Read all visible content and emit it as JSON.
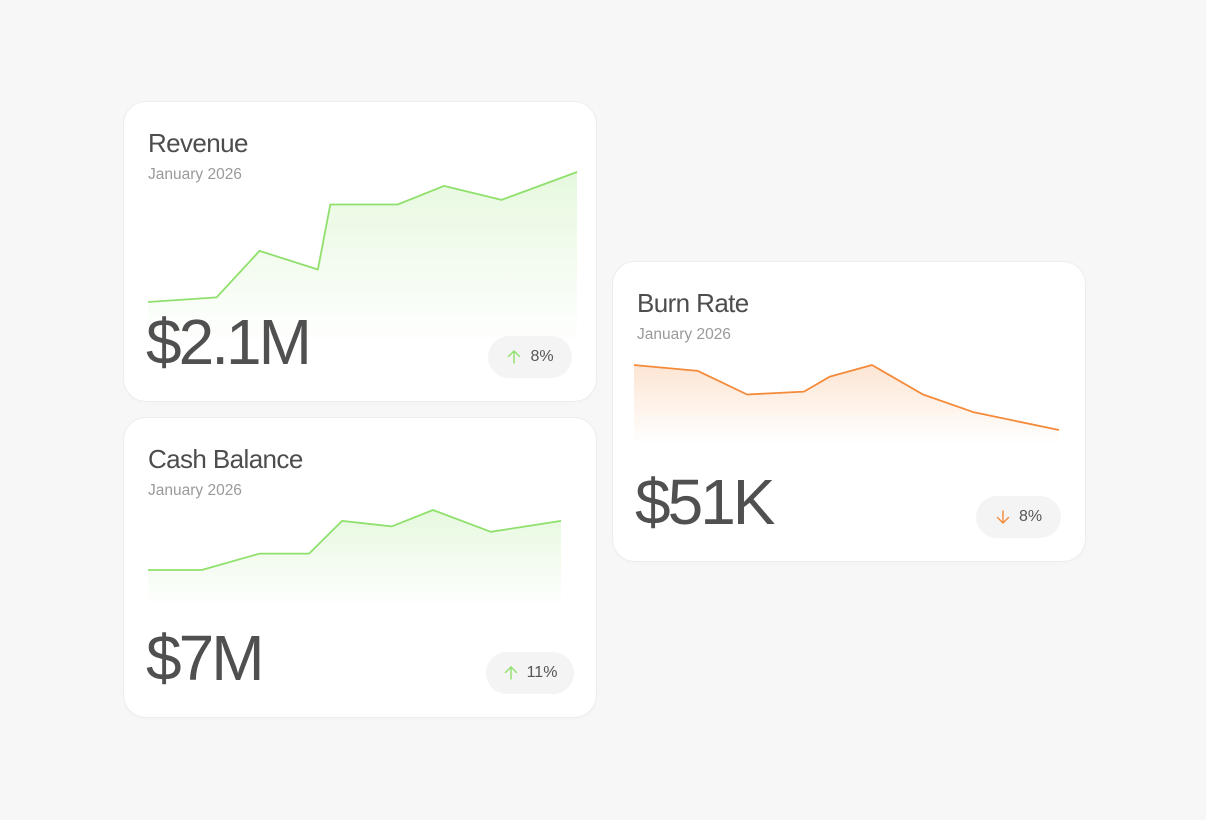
{
  "colors": {
    "background": "#f7f7f7",
    "card": "#ffffff",
    "positive": "#8fe06c",
    "negative": "#f48a3a",
    "badge_bg": "#f4f4f4",
    "text_primary": "#505050",
    "text_muted": "#9a9a9a"
  },
  "cards": {
    "revenue": {
      "title": "Revenue",
      "period": "January 2026",
      "value": "$2.1M",
      "change": "8%",
      "direction": "up",
      "trend_icon": "arrow-up-icon",
      "sparkline": [
        10,
        11,
        21,
        17,
        31,
        31,
        35,
        32,
        38
      ]
    },
    "cash_balance": {
      "title": "Cash Balance",
      "period": "January 2026",
      "value": "$7M",
      "change": "11%",
      "direction": "up",
      "trend_icon": "arrow-up-icon",
      "sparkline": [
        10,
        10,
        13,
        13,
        19,
        18,
        21,
        17,
        19
      ]
    },
    "burn_rate": {
      "title": "Burn Rate",
      "period": "January 2026",
      "value": "$51K",
      "change": "8%",
      "direction": "down",
      "trend_icon": "arrow-down-icon",
      "sparkline": [
        30,
        29,
        25,
        25.5,
        28,
        30,
        25,
        22,
        19
      ]
    }
  }
}
